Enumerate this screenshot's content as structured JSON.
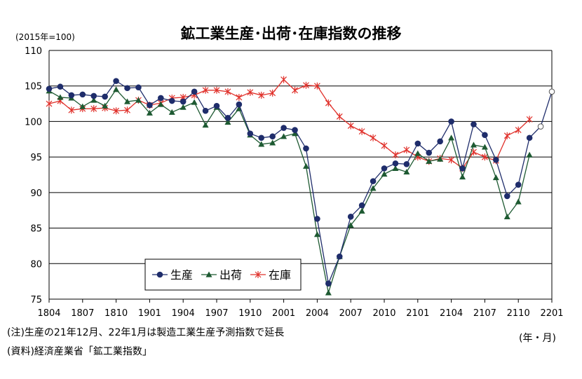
{
  "title": "鉱工業生産･出荷･在庫指数の推移",
  "unit_label": "(2015年=100)",
  "period_label": "(年・月)",
  "notes": [
    "(注)生産の21年12月、22年1月は製造工業生産予測指数で延長",
    "(資料)経済産業省「鉱工業指数」"
  ],
  "colors": {
    "production": "#1f2d6b",
    "shipments": "#1e5a32",
    "inventory": "#e0302a",
    "grid": "#000000"
  },
  "chart_data": {
    "type": "line",
    "title": "鉱工業生産･出荷･在庫指数の推移",
    "ylim": [
      75,
      110
    ],
    "yticks": [
      75,
      80,
      85,
      90,
      95,
      100,
      105,
      110
    ],
    "grid": "horizontal",
    "legend_position": "bottom-left",
    "x_tick_labels": [
      "1804",
      "1807",
      "1810",
      "1901",
      "1904",
      "1907",
      "1910",
      "2001",
      "2004",
      "2007",
      "2010",
      "2101",
      "2104",
      "2107",
      "2110",
      "2201"
    ],
    "x_start": "1804",
    "series": [
      {
        "name": "生産",
        "marker": "circle",
        "values": [
          104.6,
          104.9,
          103.7,
          103.8,
          103.6,
          103.5,
          105.7,
          104.7,
          104.8,
          102.3,
          103.3,
          102.9,
          102.8,
          104.2,
          101.5,
          102.2,
          100.5,
          102.4,
          98.3,
          97.7,
          97.9,
          99.1,
          98.8,
          96.2,
          86.3,
          77.2,
          81.0,
          86.6,
          88.2,
          91.6,
          93.4,
          94.1,
          94.0,
          96.9,
          95.6,
          97.2,
          100.0,
          93.4,
          99.6,
          98.1,
          94.6,
          89.5,
          91.1,
          97.7
        ],
        "forecast_values": [
          99.3,
          104.2
        ]
      },
      {
        "name": "出荷",
        "marker": "triangle",
        "values": [
          104.3,
          103.4,
          103.3,
          102.1,
          103.0,
          102.2,
          104.5,
          102.8,
          103.0,
          101.2,
          102.4,
          101.3,
          102.0,
          102.7,
          99.5,
          102.0,
          99.9,
          101.8,
          98.1,
          96.8,
          97.0,
          97.9,
          98.3,
          93.7,
          84.1,
          75.9,
          81.0,
          85.4,
          87.4,
          90.6,
          92.6,
          93.4,
          92.9,
          95.5,
          94.4,
          94.7,
          97.7,
          92.2,
          96.7,
          96.4,
          92.1,
          86.6,
          88.7,
          95.3
        ]
      },
      {
        "name": "在庫",
        "marker": "asterisk",
        "values": [
          102.5,
          102.9,
          101.6,
          101.8,
          101.8,
          101.9,
          101.5,
          101.6,
          103.0,
          102.3,
          102.6,
          103.3,
          103.4,
          103.7,
          104.4,
          104.4,
          104.2,
          103.4,
          104.1,
          103.7,
          104.0,
          105.9,
          104.4,
          105.1,
          105.0,
          102.6,
          100.7,
          99.4,
          98.6,
          97.7,
          96.6,
          95.3,
          96.0,
          95.0,
          94.4,
          94.8,
          94.6,
          93.4,
          95.7,
          95.0,
          94.5,
          98.0,
          98.8,
          100.3
        ]
      }
    ]
  }
}
